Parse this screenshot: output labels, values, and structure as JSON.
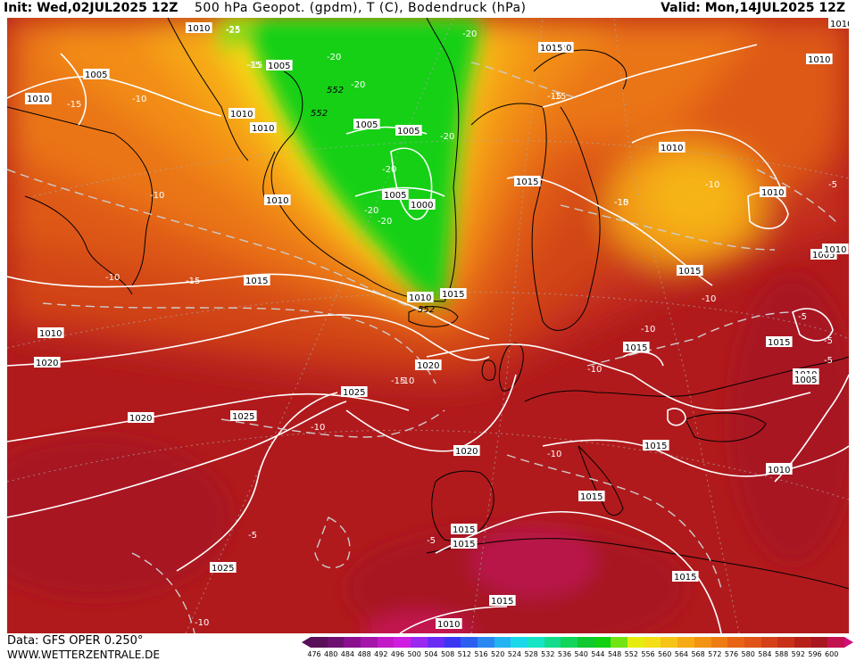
{
  "header": {
    "init": "Init: Wed,02JUL2025 12Z",
    "title": "500 hPa Geopot. (gpdm), T (C), Bodendruck (hPa)",
    "valid": "Valid: Mon,14JUL2025 12Z"
  },
  "footer": {
    "data_source": "Data: GFS OPER 0.250°",
    "website": "WWW.WETTERZENTRALE.DE"
  },
  "colorbar": {
    "labels": [
      "476",
      "480",
      "484",
      "488",
      "492",
      "496",
      "500",
      "504",
      "508",
      "512",
      "516",
      "520",
      "524",
      "528",
      "532",
      "536",
      "540",
      "544",
      "548",
      "552",
      "556",
      "560",
      "564",
      "568",
      "572",
      "576",
      "580",
      "584",
      "588",
      "592",
      "596",
      "600"
    ],
    "colors": [
      "#5a0f5a",
      "#6e1070",
      "#8a1090",
      "#a515aa",
      "#c21ac6",
      "#d01ee0",
      "#9a28f0",
      "#6a2cf5",
      "#3a36f2",
      "#2c5ef0",
      "#2a88f2",
      "#22b4f0",
      "#1ad8ea",
      "#16e4c4",
      "#14dc8c",
      "#12d45a",
      "#10c830",
      "#12d012",
      "#72e414",
      "#e6ec10",
      "#f4de18",
      "#f6c416",
      "#f6aa14",
      "#f49212",
      "#ee7c12",
      "#e86414",
      "#e05418",
      "#d44018",
      "#c83018",
      "#b62018",
      "#a81620",
      "#c21250"
    ]
  },
  "map": {
    "pressure_labels": [
      "1010",
      "1005",
      "1010",
      "1005",
      "1010",
      "1010",
      "1005",
      "1005",
      "1000",
      "1005",
      "1015",
      "1010",
      "1020",
      "1015",
      "1015",
      "1010",
      "1010",
      "1015",
      "1020",
      "1025",
      "1025",
      "1020",
      "1020",
      "1015",
      "1015",
      "1015",
      "1015",
      "1010",
      "1025",
      "1015",
      "1010",
      "1015",
      "1015",
      "1005",
      "1010",
      "1010",
      "1010",
      "1010",
      "1005",
      "1015",
      "1020",
      "1010",
      "1015",
      "1015",
      "1010",
      "1010"
    ],
    "temperature_labels": [
      "-25",
      "-15",
      "-20",
      "-25",
      "-20",
      "-20",
      "-15",
      "-10",
      "-15",
      "-10",
      "-20",
      "-20",
      "-20",
      "-15",
      "-10",
      "-15",
      "-10",
      "-20",
      "-15",
      "-10",
      "-10",
      "-10",
      "-10",
      "-10",
      "-15",
      "-10",
      "-15",
      "-5",
      "-10",
      "-5",
      "-10",
      "-5",
      "-5",
      "-5",
      "-5"
    ],
    "geopotential_labels": [
      "552",
      "552",
      "552"
    ]
  }
}
